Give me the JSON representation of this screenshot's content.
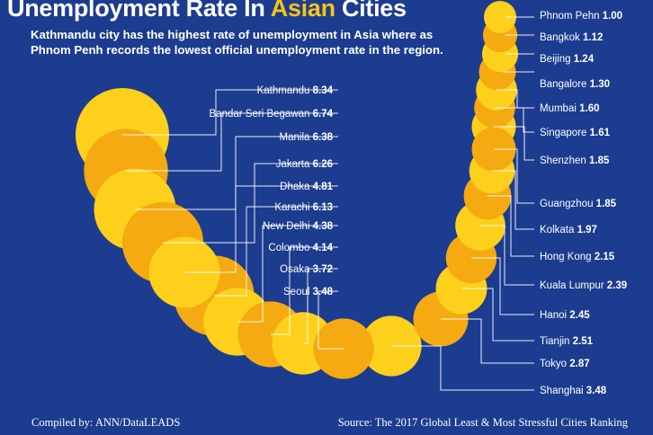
{
  "title": {
    "part1": "Unemployment Rate In ",
    "highlight": "Asian",
    "part2": " Cities"
  },
  "subtitle": {
    "line1": "Kathmandu city has the highest rate of unemployment in Asia where as",
    "line2": "Phnom Penh records the lowest official unemployment rate in  the region."
  },
  "footer": {
    "credit": "Compiled by: ANN/DataLEADS",
    "source": "Source: The 2017 Global Least & Most Stressful Cities Ranking"
  },
  "colors": {
    "background": "#1c3c8f",
    "bubble_light": "#fdd01b",
    "bubble_dark": "#f4aa10",
    "text": "#ffffff",
    "highlight": "#f7c315"
  },
  "chart_data": {
    "type": "bubble",
    "title": "Unemployment Rate In Asian Cities",
    "unit": "percent",
    "cities": [
      {
        "name": "Phnom Pehn",
        "value": "1.00"
      },
      {
        "name": "Bangkok",
        "value": "1.12"
      },
      {
        "name": "Beijing",
        "value": "1.24"
      },
      {
        "name": "Bangalore",
        "value": "1.30"
      },
      {
        "name": "Mumbai",
        "value": "1.60"
      },
      {
        "name": "Singapore",
        "value": "1.61"
      },
      {
        "name": "Shenzhen",
        "value": "1.85"
      },
      {
        "name": "Guangzhou",
        "value": "1.85"
      },
      {
        "name": "Kolkata",
        "value": "1.97"
      },
      {
        "name": "Hong Kong",
        "value": "2.15"
      },
      {
        "name": "Kuala Lumpur",
        "value": "2.39"
      },
      {
        "name": "Hanoi",
        "value": "2.45"
      },
      {
        "name": "Tianjin",
        "value": "2.51"
      },
      {
        "name": "Tokyo",
        "value": "2.87"
      },
      {
        "name": "Shanghai",
        "value": "3.48"
      },
      {
        "name": "Seoul",
        "value": "3.48"
      },
      {
        "name": "Osaka",
        "value": "3.72"
      },
      {
        "name": "Colombo",
        "value": "4.14"
      },
      {
        "name": "New Delhi",
        "value": "4.38"
      },
      {
        "name": "Karachi",
        "value": "6.13"
      },
      {
        "name": "Dhaka",
        "value": "4.81"
      },
      {
        "name": "Jakarta",
        "value": "6.26"
      },
      {
        "name": "Manila",
        "value": "6.38"
      },
      {
        "name": "Bandar Seri Begawan",
        "value": "6.74"
      },
      {
        "name": "Kathmandu",
        "value": "8.34"
      }
    ]
  }
}
